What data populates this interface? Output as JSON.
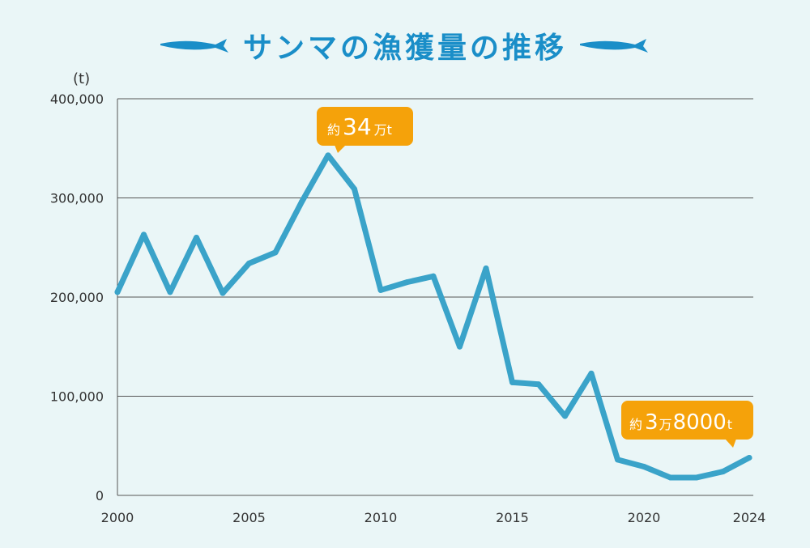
{
  "title": "サンマの漁獲量の推移",
  "colors": {
    "line": "#3aa3c9",
    "title": "#1a8ec8",
    "callout": "#f5a20a",
    "grid": "#555555",
    "fish": "#1a8ec8"
  },
  "icons": {
    "left": "fish-icon",
    "right": "fish-icon"
  },
  "chart_data": {
    "type": "line",
    "title": "サンマの漁獲量の推移",
    "unit_label": "(t)",
    "xlim": [
      2000,
      2024
    ],
    "ylim": [
      0,
      400000
    ],
    "x_ticks": [
      "2000",
      "2005",
      "2010",
      "2015",
      "2020",
      "2024"
    ],
    "y_ticks": [
      "0",
      "100,000",
      "200,000",
      "300,000",
      "400,000"
    ],
    "grid": true,
    "legend": "none",
    "x": [
      2000,
      2001,
      2002,
      2003,
      2004,
      2005,
      2006,
      2007,
      2008,
      2009,
      2010,
      2011,
      2012,
      2013,
      2014,
      2015,
      2016,
      2017,
      2018,
      2019,
      2020,
      2021,
      2022,
      2023,
      2024
    ],
    "values": [
      205000,
      263000,
      205000,
      260000,
      204000,
      234000,
      245000,
      296000,
      343000,
      309000,
      207000,
      215000,
      221000,
      150000,
      229000,
      114000,
      112000,
      80000,
      123000,
      36000,
      29000,
      18000,
      18000,
      24000,
      38000
    ],
    "annotations": [
      {
        "x": 2008,
        "prefix": "約",
        "number": "34",
        "suffix": "万t"
      },
      {
        "x": 2024,
        "prefix": "約",
        "number": "3",
        "mid": "万",
        "number2": "8000",
        "suffix": "t"
      }
    ]
  }
}
